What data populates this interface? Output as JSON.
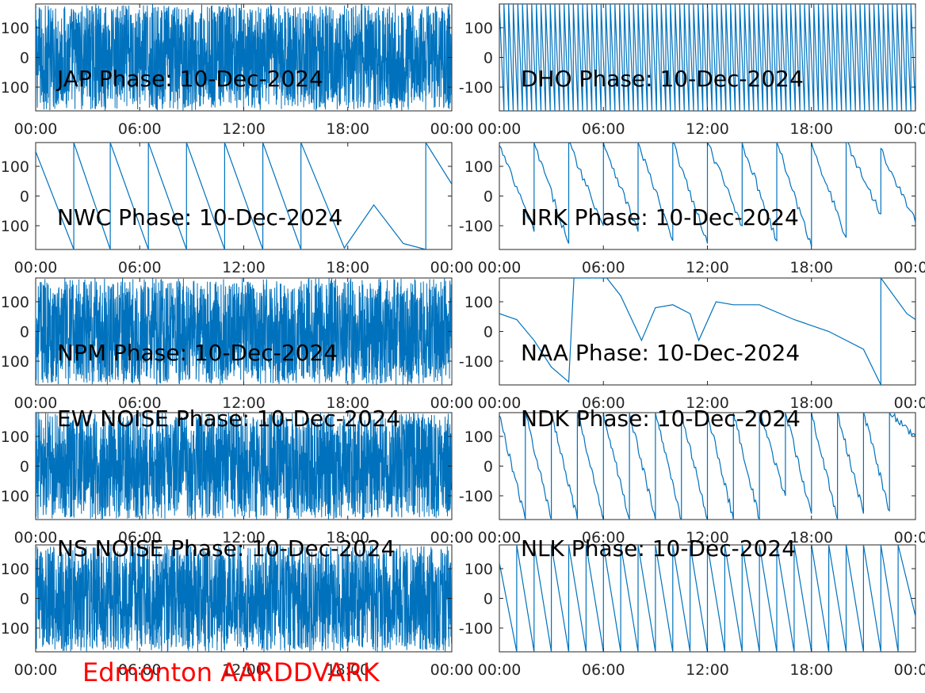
{
  "figure_caption": "Edmonton AARDDVARK",
  "caption_color": "#ff0000",
  "line_color": "#0072bd",
  "chart_data": [
    {
      "type": "line",
      "title": "JAP Phase: 10-Dec-2024",
      "style": "dense",
      "x_ticks": [
        "00:00",
        "06:00",
        "12:00",
        "18:00",
        "00:00"
      ],
      "y_ticks": [
        "100",
        "0",
        "100"
      ],
      "ylim": [
        -180,
        180
      ],
      "xlim_hours": [
        0,
        24
      ]
    },
    {
      "type": "line",
      "title": "DHO Phase: 10-Dec-2024",
      "style": "fast-sawtooth",
      "x_ticks": [
        "00:00",
        "06:00",
        "12:00",
        "18:00",
        "00:00"
      ],
      "y_ticks": [
        "100",
        "0",
        "-100"
      ],
      "ylim": [
        -180,
        180
      ],
      "xlim_hours": [
        0,
        24
      ]
    },
    {
      "type": "line",
      "title": "NWC Phase: 10-Dec-2024",
      "style": "sawtooth",
      "x_ticks": [
        "00:00",
        "06:00",
        "12:00",
        "18:00",
        "00:00"
      ],
      "y_ticks": [
        "100",
        "0",
        "100"
      ],
      "ylim": [
        -180,
        180
      ],
      "xlim_hours": [
        0,
        24
      ],
      "points": [
        [
          0,
          150
        ],
        [
          2.2,
          -180
        ],
        [
          2.2,
          180
        ],
        [
          4.3,
          -180
        ],
        [
          4.3,
          180
        ],
        [
          6.5,
          -180
        ],
        [
          6.5,
          180
        ],
        [
          8.7,
          -180
        ],
        [
          8.7,
          180
        ],
        [
          10.9,
          -180
        ],
        [
          10.9,
          180
        ],
        [
          13.1,
          -180
        ],
        [
          13.1,
          180
        ],
        [
          15.3,
          -180
        ],
        [
          15.3,
          180
        ],
        [
          17.8,
          -175
        ],
        [
          19.5,
          -30
        ],
        [
          21.2,
          -160
        ],
        [
          22.5,
          -180
        ],
        [
          22.5,
          180
        ],
        [
          24,
          40
        ]
      ]
    },
    {
      "type": "line",
      "title": "NRK Phase: 10-Dec-2024",
      "style": "sawtooth-noisy",
      "x_ticks": [
        "00:00",
        "06:00",
        "12:00",
        "18:00",
        "00:00"
      ],
      "y_ticks": [
        "100",
        "0",
        "-100"
      ],
      "ylim": [
        -180,
        180
      ],
      "xlim_hours": [
        0,
        24
      ],
      "points": [
        [
          0,
          170
        ],
        [
          2,
          -120
        ],
        [
          2,
          180
        ],
        [
          4,
          -160
        ],
        [
          4,
          180
        ],
        [
          6,
          -100
        ],
        [
          6,
          180
        ],
        [
          8,
          -120
        ],
        [
          8,
          180
        ],
        [
          10,
          -150
        ],
        [
          10,
          180
        ],
        [
          12,
          -160
        ],
        [
          12,
          180
        ],
        [
          14,
          -100
        ],
        [
          14,
          180
        ],
        [
          16,
          -150
        ],
        [
          16,
          180
        ],
        [
          18,
          -170
        ],
        [
          18,
          180
        ],
        [
          20,
          -140
        ],
        [
          20,
          180
        ],
        [
          22,
          -60
        ],
        [
          22,
          160
        ],
        [
          24,
          -90
        ]
      ]
    },
    {
      "type": "line",
      "title": "NPM Phase: 10-Dec-2024",
      "style": "dense",
      "x_ticks": [
        "00:00",
        "06:00",
        "12:00",
        "18:00",
        "00:00"
      ],
      "y_ticks": [
        "100",
        "0",
        "100"
      ],
      "ylim": [
        -180,
        180
      ],
      "xlim_hours": [
        0,
        24
      ]
    },
    {
      "type": "line",
      "title": "NAA Phase: 10-Dec-2024",
      "style": "smooth",
      "x_ticks": [
        "00:00",
        "06:00",
        "12:00",
        "18:00",
        "00:00"
      ],
      "y_ticks": [
        "100",
        "0",
        "-100"
      ],
      "ylim": [
        -180,
        180
      ],
      "xlim_hours": [
        0,
        24
      ],
      "points": [
        [
          0,
          60
        ],
        [
          1,
          40
        ],
        [
          2,
          -30
        ],
        [
          3,
          -120
        ],
        [
          4,
          -170
        ],
        [
          4.3,
          180
        ],
        [
          6.2,
          180
        ],
        [
          7,
          120
        ],
        [
          8.2,
          -30
        ],
        [
          9,
          80
        ],
        [
          10,
          90
        ],
        [
          11,
          60
        ],
        [
          11.5,
          -30
        ],
        [
          12.5,
          100
        ],
        [
          13.5,
          90
        ],
        [
          15,
          90
        ],
        [
          17,
          40
        ],
        [
          19,
          0
        ],
        [
          21,
          -60
        ],
        [
          22,
          -180
        ],
        [
          22,
          180
        ],
        [
          23.5,
          60
        ],
        [
          24,
          40
        ]
      ]
    },
    {
      "type": "line",
      "title": "EW NOISE Phase: 10-Dec-2024",
      "style": "dense",
      "x_ticks": [
        "00:00",
        "06:00",
        "12:00",
        "18:00",
        "00:00"
      ],
      "y_ticks": [
        "100",
        "0",
        "100"
      ],
      "ylim": [
        -180,
        180
      ],
      "xlim_hours": [
        0,
        24
      ]
    },
    {
      "type": "line",
      "title": "NDK Phase: 10-Dec-2024",
      "style": "sawtooth-noisy",
      "x_ticks": [
        "00:00",
        "06:00",
        "12:00",
        "18:00",
        "00:00"
      ],
      "y_ticks": [
        "100",
        "0",
        "-100"
      ],
      "ylim": [
        -180,
        180
      ],
      "xlim_hours": [
        0,
        24
      ],
      "points": [
        [
          0,
          170
        ],
        [
          1.5,
          -180
        ],
        [
          1.5,
          180
        ],
        [
          3,
          -180
        ],
        [
          3,
          180
        ],
        [
          4.5,
          -180
        ],
        [
          4.5,
          180
        ],
        [
          6,
          -180
        ],
        [
          6,
          180
        ],
        [
          7.5,
          -180
        ],
        [
          7.5,
          180
        ],
        [
          9,
          -180
        ],
        [
          9,
          180
        ],
        [
          10.5,
          -180
        ],
        [
          10.5,
          180
        ],
        [
          12,
          -180
        ],
        [
          12,
          180
        ],
        [
          13.5,
          -180
        ],
        [
          13.5,
          180
        ],
        [
          15,
          -180
        ],
        [
          15,
          180
        ],
        [
          16.5,
          -100
        ],
        [
          16.5,
          180
        ],
        [
          18,
          -160
        ],
        [
          18,
          180
        ],
        [
          19.5,
          -180
        ],
        [
          19.5,
          180
        ],
        [
          21,
          -160
        ],
        [
          21,
          180
        ],
        [
          22.5,
          -150
        ],
        [
          22.5,
          180
        ],
        [
          24,
          100
        ]
      ]
    },
    {
      "type": "line",
      "title": "NS NOISE Phase: 10-Dec-2024",
      "style": "dense",
      "x_ticks": [
        "00:00",
        "06:00",
        "12:00",
        "18:00",
        "00:00"
      ],
      "y_ticks": [
        "100",
        "0",
        "100"
      ],
      "ylim": [
        -180,
        180
      ],
      "xlim_hours": [
        0,
        24
      ]
    },
    {
      "type": "line",
      "title": "NLK Phase: 10-Dec-2024",
      "style": "sawtooth",
      "x_ticks": [
        "00:00",
        "06:00",
        "12:00",
        "18:00",
        "00:00"
      ],
      "y_ticks": [
        "100",
        "0",
        "-100"
      ],
      "ylim": [
        -180,
        180
      ],
      "xlim_hours": [
        0,
        24
      ],
      "points": [
        [
          0,
          120
        ],
        [
          1,
          -180
        ],
        [
          1,
          180
        ],
        [
          2,
          -180
        ],
        [
          2,
          180
        ],
        [
          3,
          -180
        ],
        [
          3,
          180
        ],
        [
          4,
          -180
        ],
        [
          4,
          180
        ],
        [
          5,
          -180
        ],
        [
          5,
          180
        ],
        [
          6,
          -180
        ],
        [
          6,
          180
        ],
        [
          7,
          -180
        ],
        [
          7,
          180
        ],
        [
          8,
          -180
        ],
        [
          8,
          180
        ],
        [
          9,
          -180
        ],
        [
          9,
          180
        ],
        [
          10,
          -180
        ],
        [
          10,
          180
        ],
        [
          11,
          -180
        ],
        [
          11,
          180
        ],
        [
          12,
          -180
        ],
        [
          12,
          180
        ],
        [
          13,
          -180
        ],
        [
          13,
          180
        ],
        [
          14,
          -180
        ],
        [
          14,
          180
        ],
        [
          15,
          -180
        ],
        [
          15,
          180
        ],
        [
          16,
          -180
        ],
        [
          16,
          180
        ],
        [
          17,
          -180
        ],
        [
          17,
          180
        ],
        [
          18,
          -180
        ],
        [
          18,
          180
        ],
        [
          19,
          -180
        ],
        [
          19,
          180
        ],
        [
          20,
          -180
        ],
        [
          20,
          180
        ],
        [
          21,
          -180
        ],
        [
          21,
          180
        ],
        [
          22,
          -180
        ],
        [
          22,
          180
        ],
        [
          23,
          -180
        ],
        [
          23,
          180
        ],
        [
          24,
          -60
        ]
      ]
    }
  ]
}
